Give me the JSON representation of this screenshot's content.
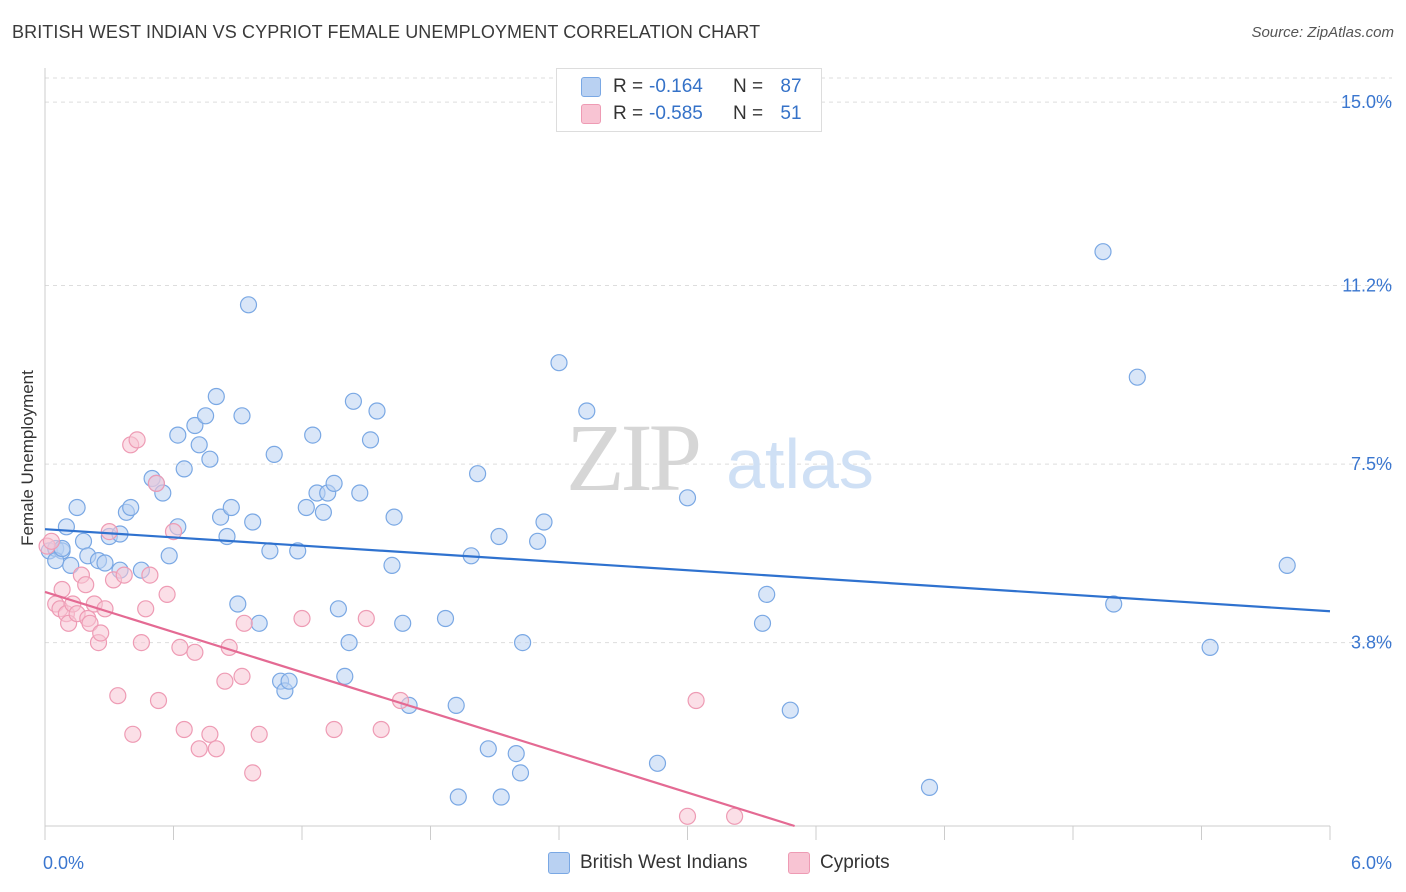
{
  "title": "BRITISH WEST INDIAN VS CYPRIOT FEMALE UNEMPLOYMENT CORRELATION CHART",
  "source": "Source: ZipAtlas.com",
  "watermark": {
    "zip": "ZIP",
    "atlas": "atlas"
  },
  "legend": {
    "blue": {
      "r_label": "R =",
      "r_value": "-0.164",
      "n_label": "N =",
      "n_value": "87"
    },
    "pink": {
      "r_label": "R =",
      "r_value": "-0.585",
      "n_label": "N =",
      "n_value": "51"
    }
  },
  "bottom_legend": {
    "blue": "British West Indians",
    "pink": "Cypriots"
  },
  "colors": {
    "blue_fill": "#b9d1f2",
    "blue_stroke": "#7aa8e4",
    "blue_line": "#2f72cf",
    "pink_fill": "#f8c4d3",
    "pink_stroke": "#ee9bb4",
    "pink_line": "#e46a93",
    "tick_label": "#3a76cf"
  },
  "chart_data": {
    "type": "scatter",
    "title": "BRITISH WEST INDIAN VS CYPRIOT FEMALE UNEMPLOYMENT CORRELATION CHART",
    "xlabel": "",
    "ylabel": "Female Unemployment",
    "xlim": [
      0,
      6
    ],
    "ylim": [
      0,
      15.5
    ],
    "x_tick_labels": [
      "0.0%",
      "6.0%"
    ],
    "y_ticks": [
      3.8,
      7.5,
      11.2,
      15.0
    ],
    "y_tick_labels": [
      "3.8%",
      "7.5%",
      "11.2%",
      "15.0%"
    ],
    "grid": true,
    "series": [
      {
        "name": "British West Indians",
        "color": "#7aa8e4",
        "points": [
          [
            0.02,
            5.7
          ],
          [
            0.05,
            5.75
          ],
          [
            0.08,
            5.7
          ],
          [
            0.1,
            6.2
          ],
          [
            0.12,
            5.4
          ],
          [
            0.15,
            6.6
          ],
          [
            0.18,
            5.9
          ],
          [
            0.2,
            5.6
          ],
          [
            0.25,
            5.5
          ],
          [
            0.3,
            6.0
          ],
          [
            0.35,
            6.05
          ],
          [
            0.38,
            6.5
          ],
          [
            0.4,
            6.6
          ],
          [
            0.45,
            5.3
          ],
          [
            0.5,
            7.2
          ],
          [
            0.52,
            7.1
          ],
          [
            0.55,
            6.9
          ],
          [
            0.58,
            5.6
          ],
          [
            0.62,
            6.2
          ],
          [
            0.62,
            8.1
          ],
          [
            0.65,
            7.4
          ],
          [
            0.7,
            8.3
          ],
          [
            0.72,
            7.9
          ],
          [
            0.75,
            8.5
          ],
          [
            0.77,
            7.6
          ],
          [
            0.8,
            8.9
          ],
          [
            0.82,
            6.4
          ],
          [
            0.85,
            6.0
          ],
          [
            0.87,
            6.6
          ],
          [
            0.9,
            4.6
          ],
          [
            0.92,
            8.5
          ],
          [
            0.95,
            10.8
          ],
          [
            0.97,
            6.3
          ],
          [
            1.0,
            4.2
          ],
          [
            1.05,
            5.7
          ],
          [
            1.07,
            7.7
          ],
          [
            1.1,
            3.0
          ],
          [
            1.12,
            2.8
          ],
          [
            1.14,
            3.0
          ],
          [
            1.18,
            5.7
          ],
          [
            1.22,
            6.6
          ],
          [
            1.25,
            8.1
          ],
          [
            1.27,
            6.9
          ],
          [
            1.3,
            6.5
          ],
          [
            1.32,
            6.9
          ],
          [
            1.35,
            7.1
          ],
          [
            1.37,
            4.5
          ],
          [
            1.4,
            3.1
          ],
          [
            1.42,
            3.8
          ],
          [
            1.44,
            8.8
          ],
          [
            1.47,
            6.9
          ],
          [
            1.52,
            8.0
          ],
          [
            1.55,
            8.6
          ],
          [
            1.62,
            5.4
          ],
          [
            1.63,
            6.4
          ],
          [
            1.67,
            4.2
          ],
          [
            1.7,
            2.5
          ],
          [
            1.87,
            4.3
          ],
          [
            1.92,
            2.5
          ],
          [
            1.93,
            0.6
          ],
          [
            1.99,
            5.6
          ],
          [
            2.02,
            7.3
          ],
          [
            2.07,
            1.6
          ],
          [
            2.12,
            6.0
          ],
          [
            2.13,
            0.6
          ],
          [
            2.2,
            1.5
          ],
          [
            2.22,
            1.1
          ],
          [
            2.23,
            3.8
          ],
          [
            2.3,
            5.9
          ],
          [
            2.33,
            6.3
          ],
          [
            2.4,
            9.6
          ],
          [
            2.53,
            8.6
          ],
          [
            2.86,
            1.3
          ],
          [
            3.0,
            6.8
          ],
          [
            3.35,
            4.2
          ],
          [
            3.37,
            4.8
          ],
          [
            3.48,
            2.4
          ],
          [
            4.13,
            0.8
          ],
          [
            4.94,
            11.9
          ],
          [
            4.99,
            4.6
          ],
          [
            5.1,
            9.3
          ],
          [
            5.44,
            3.7
          ],
          [
            5.8,
            5.4
          ],
          [
            0.05,
            5.5
          ],
          [
            0.08,
            5.75
          ],
          [
            0.28,
            5.45
          ],
          [
            0.35,
            5.3
          ]
        ]
      },
      {
        "name": "Cypriots",
        "color": "#ee9bb4",
        "points": [
          [
            0.01,
            5.8
          ],
          [
            0.03,
            5.9
          ],
          [
            0.05,
            4.6
          ],
          [
            0.07,
            4.5
          ],
          [
            0.08,
            4.9
          ],
          [
            0.1,
            4.4
          ],
          [
            0.11,
            4.2
          ],
          [
            0.13,
            4.6
          ],
          [
            0.15,
            4.4
          ],
          [
            0.17,
            5.2
          ],
          [
            0.19,
            5.0
          ],
          [
            0.2,
            4.3
          ],
          [
            0.21,
            4.2
          ],
          [
            0.23,
            4.6
          ],
          [
            0.25,
            3.8
          ],
          [
            0.26,
            4.0
          ],
          [
            0.28,
            4.5
          ],
          [
            0.3,
            6.1
          ],
          [
            0.32,
            5.1
          ],
          [
            0.34,
            2.7
          ],
          [
            0.37,
            5.2
          ],
          [
            0.4,
            7.9
          ],
          [
            0.41,
            1.9
          ],
          [
            0.43,
            8.0
          ],
          [
            0.45,
            3.8
          ],
          [
            0.47,
            4.5
          ],
          [
            0.49,
            5.2
          ],
          [
            0.52,
            7.1
          ],
          [
            0.53,
            2.6
          ],
          [
            0.57,
            4.8
          ],
          [
            0.6,
            6.1
          ],
          [
            0.63,
            3.7
          ],
          [
            0.65,
            2.0
          ],
          [
            0.7,
            3.6
          ],
          [
            0.72,
            1.6
          ],
          [
            0.77,
            1.9
          ],
          [
            0.8,
            1.6
          ],
          [
            0.84,
            3.0
          ],
          [
            0.86,
            3.7
          ],
          [
            0.92,
            3.1
          ],
          [
            0.93,
            4.2
          ],
          [
            0.97,
            1.1
          ],
          [
            1.0,
            1.9
          ],
          [
            1.2,
            4.3
          ],
          [
            1.35,
            2.0
          ],
          [
            1.5,
            4.3
          ],
          [
            1.57,
            2.0
          ],
          [
            1.66,
            2.6
          ],
          [
            3.0,
            0.2
          ],
          [
            3.04,
            2.6
          ],
          [
            3.22,
            0.2
          ]
        ]
      }
    ],
    "trendlines": [
      {
        "series": "British West Indians",
        "x": [
          0,
          6
        ],
        "y": [
          6.15,
          4.45
        ]
      },
      {
        "series": "Cypriots",
        "x": [
          0,
          3.5
        ],
        "y": [
          4.85,
          0.0
        ]
      }
    ]
  }
}
